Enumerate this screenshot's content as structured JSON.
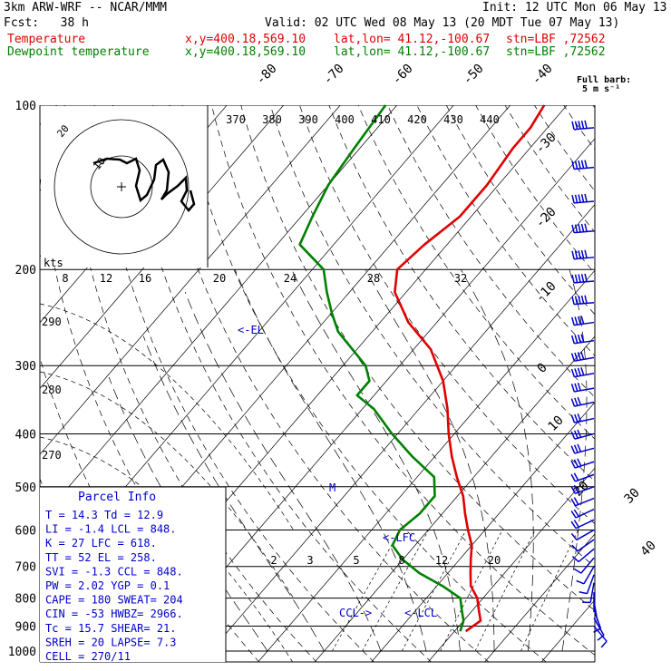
{
  "header": {
    "model": "3km ARW-WRF -- NCAR/MMM",
    "init": "Init: 12 UTC Mon 06 May 13",
    "fcst": "Fcst:   38 h",
    "valid": "Valid: 02 UTC Wed 08 May 13 (20 MDT Tue 07 May 13)",
    "temperature": {
      "label": "Temperature",
      "xy": "x,y=400.18,569.10",
      "latlon": "lat,lon= 41.12,-100.67",
      "stn": "stn=LBF ,72562",
      "color": "#e00000"
    },
    "dewpoint": {
      "label": "Dewpoint temperature",
      "xy": "x,y=400.18,569.10",
      "latlon": "lat,lon= 41.12,-100.67",
      "stn": "stn=LBF ,72562",
      "color": "#008000"
    }
  },
  "barb_key": {
    "line1": "Full barb:",
    "line2": "5 m s⁻¹"
  },
  "colors": {
    "wind": "#0000cc",
    "parcel_text": "#0000cc",
    "grid": "#000000"
  },
  "chart_data": {
    "type": "line",
    "pressure_levels": [
      100,
      200,
      300,
      400,
      500,
      600,
      700,
      800,
      900,
      1000
    ],
    "isotherm_labels": [
      "-80",
      "-70",
      "-60",
      "-50",
      "-40",
      "-30",
      "-20",
      "-10",
      "0",
      "10",
      "20",
      "30",
      "40"
    ],
    "theta_labels": [
      "370",
      "380",
      "390",
      "400",
      "410",
      "420",
      "430",
      "440"
    ],
    "hodograph_speed_labels": [
      "8",
      "12",
      "16",
      "20",
      "24",
      "28",
      "32"
    ],
    "hodograph_axis_label": "kts",
    "thetae_labels": [
      "290",
      "280",
      "270"
    ],
    "mixing_ratio_labels": [
      "2",
      "3",
      "5",
      "8",
      "12",
      "20"
    ],
    "series": [
      {
        "name": "Temperature",
        "color": "#e00000",
        "points": [
          [
            920,
            12
          ],
          [
            880,
            13
          ],
          [
            840,
            11
          ],
          [
            800,
            9
          ],
          [
            760,
            6
          ],
          [
            720,
            4
          ],
          [
            680,
            2
          ],
          [
            640,
            0
          ],
          [
            600,
            -3
          ],
          [
            560,
            -6
          ],
          [
            520,
            -9
          ],
          [
            480,
            -13
          ],
          [
            440,
            -17
          ],
          [
            400,
            -21
          ],
          [
            360,
            -25
          ],
          [
            320,
            -30
          ],
          [
            280,
            -37
          ],
          [
            250,
            -45
          ],
          [
            220,
            -52
          ],
          [
            200,
            -55
          ],
          [
            180,
            -54
          ],
          [
            160,
            -52
          ],
          [
            140,
            -52
          ],
          [
            120,
            -53
          ],
          [
            110,
            -53
          ],
          [
            100,
            -54
          ]
        ]
      },
      {
        "name": "Dewpoint temperature",
        "color": "#008000",
        "points": [
          [
            920,
            11
          ],
          [
            880,
            10
          ],
          [
            840,
            8
          ],
          [
            800,
            6
          ],
          [
            760,
            1
          ],
          [
            720,
            -5
          ],
          [
            680,
            -10
          ],
          [
            640,
            -14
          ],
          [
            600,
            -15
          ],
          [
            560,
            -14
          ],
          [
            520,
            -14
          ],
          [
            480,
            -17
          ],
          [
            440,
            -24
          ],
          [
            400,
            -31
          ],
          [
            360,
            -38
          ],
          [
            340,
            -43
          ],
          [
            320,
            -43
          ],
          [
            300,
            -46
          ],
          [
            260,
            -56
          ],
          [
            240,
            -60
          ],
          [
            220,
            -64
          ],
          [
            200,
            -68
          ],
          [
            180,
            -76
          ],
          [
            160,
            -78
          ],
          [
            140,
            -80
          ],
          [
            120,
            -81
          ],
          [
            100,
            -82
          ]
        ]
      }
    ],
    "annotations": [
      {
        "text": "<-EL",
        "p": 258
      },
      {
        "text": "<-LFC",
        "p": 618
      },
      {
        "text": "<-LCL",
        "p": 848
      },
      {
        "text": "CCL->",
        "p": 848
      },
      {
        "text": "M",
        "p": 490
      }
    ]
  },
  "parcel_info": {
    "title": "Parcel Info",
    "rows": [
      "T  =   14.3  Td =  12.9",
      "LI =   -1.4  LCL =  848.",
      "K  =     27  LFC =  618.",
      "TT =     52  EL  =  258.",
      "SVI =  -1.3  CCL =  848.",
      "PW =   2.02  YGP =   0.1",
      "CAPE =  180  SWEAT=  204",
      "CIN =   -53  HWBZ= 2966.",
      "Tc =   15.7  SHEAR=  21.",
      "SREH =   20  LAPSE=  7.3",
      "CELL = 270/11"
    ]
  },
  "wind_barbs": [
    {
      "p": 110,
      "dir": 265,
      "spd": 28
    },
    {
      "p": 130,
      "dir": 265,
      "spd": 28
    },
    {
      "p": 150,
      "dir": 265,
      "spd": 28
    },
    {
      "p": 170,
      "dir": 265,
      "spd": 26
    },
    {
      "p": 190,
      "dir": 265,
      "spd": 26
    },
    {
      "p": 210,
      "dir": 265,
      "spd": 24
    },
    {
      "p": 230,
      "dir": 265,
      "spd": 24
    },
    {
      "p": 250,
      "dir": 262,
      "spd": 22
    },
    {
      "p": 270,
      "dir": 262,
      "spd": 22
    },
    {
      "p": 290,
      "dir": 260,
      "spd": 20
    },
    {
      "p": 310,
      "dir": 260,
      "spd": 20
    },
    {
      "p": 330,
      "dir": 260,
      "spd": 18
    },
    {
      "p": 350,
      "dir": 258,
      "spd": 18
    },
    {
      "p": 375,
      "dir": 258,
      "spd": 16
    },
    {
      "p": 400,
      "dir": 255,
      "spd": 16
    },
    {
      "p": 425,
      "dir": 255,
      "spd": 14
    },
    {
      "p": 450,
      "dir": 252,
      "spd": 14
    },
    {
      "p": 475,
      "dir": 250,
      "spd": 12
    },
    {
      "p": 500,
      "dir": 250,
      "spd": 12
    },
    {
      "p": 525,
      "dir": 248,
      "spd": 11
    },
    {
      "p": 550,
      "dir": 245,
      "spd": 10
    },
    {
      "p": 575,
      "dir": 245,
      "spd": 9
    },
    {
      "p": 600,
      "dir": 240,
      "spd": 8
    },
    {
      "p": 625,
      "dir": 235,
      "spd": 7
    },
    {
      "p": 650,
      "dir": 230,
      "spd": 6
    },
    {
      "p": 675,
      "dir": 220,
      "spd": 5
    },
    {
      "p": 700,
      "dir": 210,
      "spd": 5
    },
    {
      "p": 725,
      "dir": 200,
      "spd": 4
    },
    {
      "p": 750,
      "dir": 190,
      "spd": 4
    },
    {
      "p": 780,
      "dir": 180,
      "spd": 3
    },
    {
      "p": 810,
      "dir": 170,
      "spd": 3
    },
    {
      "p": 840,
      "dir": 160,
      "spd": 4
    },
    {
      "p": 870,
      "dir": 150,
      "spd": 5
    },
    {
      "p": 900,
      "dir": 140,
      "spd": 5
    }
  ]
}
